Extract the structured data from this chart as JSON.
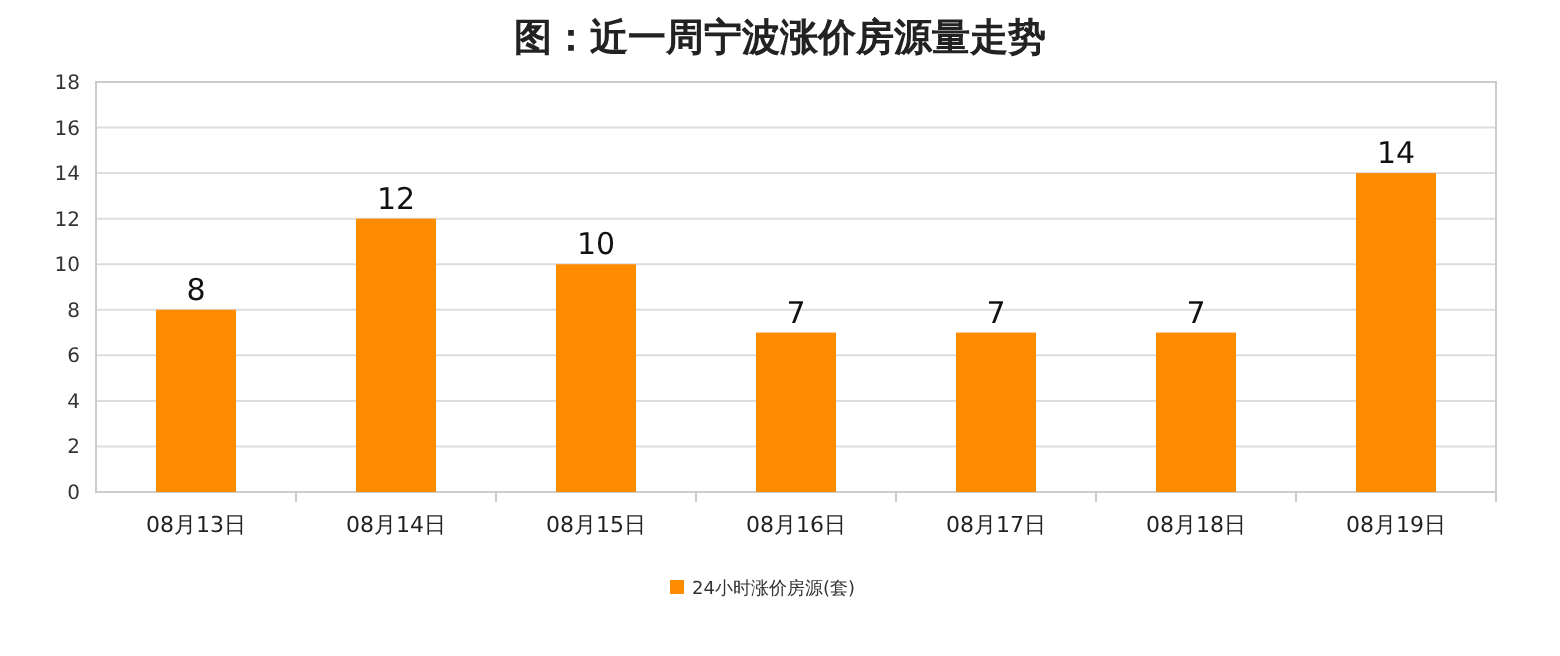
{
  "chart_data": {
    "type": "bar",
    "title": "图：近一周宁波涨价房源量走势",
    "categories": [
      "08月13日",
      "08月14日",
      "08月15日",
      "08月16日",
      "08月17日",
      "08月18日",
      "08月19日"
    ],
    "series": [
      {
        "name": "24小时涨价房源(套)",
        "color": "#ff8c00",
        "values": [
          8,
          12,
          10,
          7,
          7,
          7,
          14
        ]
      }
    ],
    "ylim": [
      0,
      18
    ],
    "yticks": [
      0,
      2,
      4,
      6,
      8,
      10,
      12,
      14,
      16,
      18
    ],
    "grid": "y",
    "legend": "bottom",
    "data_labels": true
  }
}
